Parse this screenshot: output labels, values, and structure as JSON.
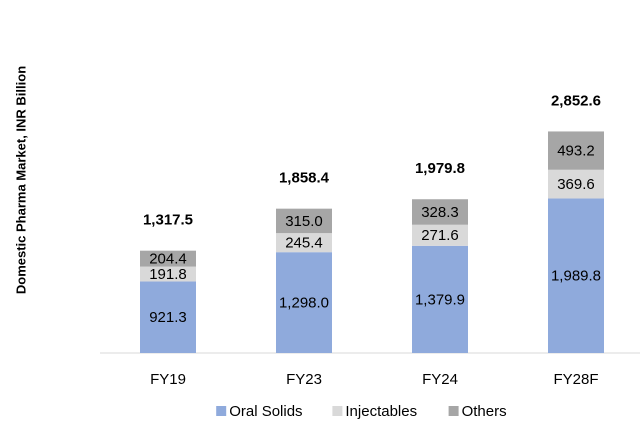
{
  "chart_data": {
    "type": "stacked_bar",
    "y_label": "Domestic Pharma Market, INR Billion",
    "categories": [
      "FY19",
      "FY23",
      "FY24",
      "FY28F"
    ],
    "series": [
      {
        "name": "Oral Solids",
        "color": "#8faadc",
        "values": [
          921.3,
          1298.0,
          1379.9,
          1989.8
        ],
        "value_labels": [
          "921.3",
          "1,298.0",
          "1,379.9",
          "1,989.8"
        ]
      },
      {
        "name": "Injectables",
        "color": "#d9d9d9",
        "values": [
          191.8,
          245.4,
          271.6,
          369.6
        ],
        "value_labels": [
          "191.8",
          "245.4",
          "271.6",
          "369.6"
        ]
      },
      {
        "name": "Others",
        "color": "#a6a6a6",
        "values": [
          204.4,
          315.0,
          328.3,
          493.2
        ],
        "value_labels": [
          "204.4",
          "315.0",
          "328.3",
          "493.2"
        ]
      }
    ],
    "totals": [
      1317.5,
      1858.4,
      1979.8,
      2852.6
    ],
    "total_labels": [
      "1,317.5",
      "1,858.4",
      "1,979.8",
      "2,852.6"
    ],
    "ylim": [
      0,
      3000
    ],
    "legend": "bottom"
  }
}
